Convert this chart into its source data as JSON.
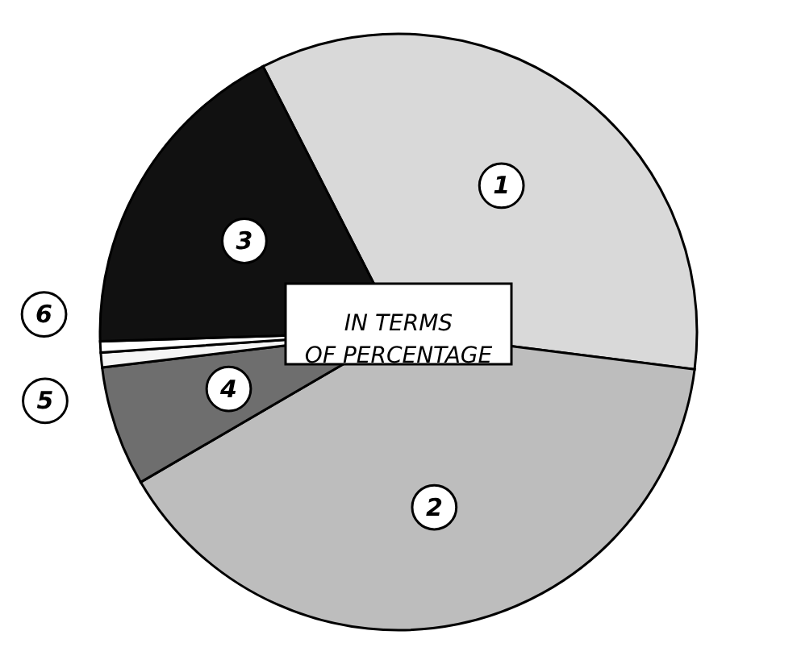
{
  "chart_data": {
    "type": "pie",
    "categories": [
      "1",
      "2",
      "4",
      "5",
      "6",
      "3"
    ],
    "values": [
      34.5,
      39.6,
      6.5,
      0.8,
      0.6,
      18.0
    ],
    "colors": [
      "#d9d9d9",
      "#bdbdbd",
      "#6e6e6e",
      "#f5f5f5",
      "#ffffff",
      "#111111"
    ],
    "annotations": [
      "IN TERMS OF PERCENTAGE"
    ]
  }
}
